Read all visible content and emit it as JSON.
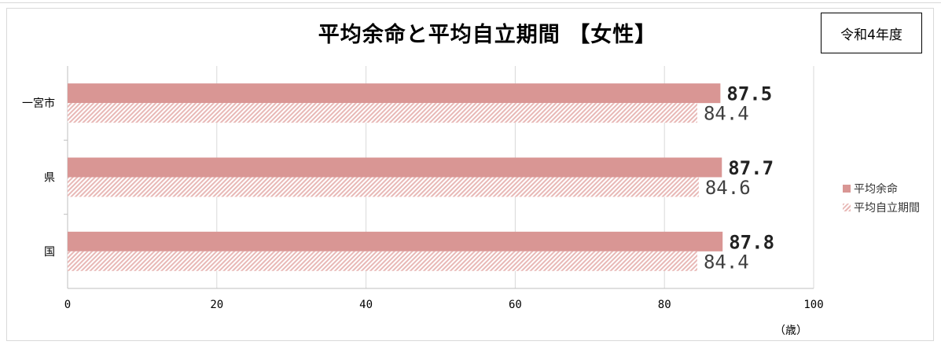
{
  "title": "平均余命と平均自立期間 【女性】",
  "year_label": "令和4年度",
  "unit_label": "（歳）",
  "colors": {
    "life_expectancy": "#d99694",
    "independent_hatch": "#e8b8b6",
    "grid": "#d9d9d9"
  },
  "chart_data": {
    "type": "bar",
    "orientation": "horizontal",
    "categories": [
      "一宮市",
      "県",
      "国"
    ],
    "series": [
      {
        "name": "平均余命",
        "values": [
          87.5,
          87.7,
          87.8
        ],
        "style": "solid"
      },
      {
        "name": "平均自立期間",
        "values": [
          84.4,
          84.6,
          84.4
        ],
        "style": "hatched"
      }
    ],
    "data_labels": [
      [
        "87.5",
        "87.7",
        "87.8"
      ],
      [
        "84.4",
        "84.6",
        "84.4"
      ]
    ],
    "x_ticks": [
      "0",
      "20",
      "40",
      "60",
      "80",
      "100"
    ],
    "xlim": [
      0,
      100
    ],
    "xlabel": "（歳）",
    "grid": true,
    "legend_position": "right"
  }
}
